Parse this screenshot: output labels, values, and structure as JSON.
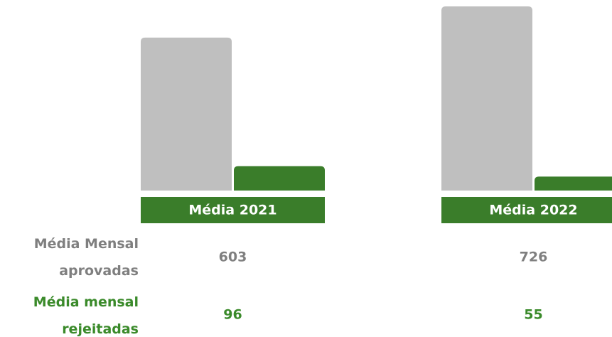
{
  "chart_data": {
    "type": "bar",
    "categories": [
      "Média 2021",
      "Média 2022"
    ],
    "series": [
      {
        "name": "Média Mensal aprovadas",
        "color": "#bfbfbf",
        "values": [
          603,
          726
        ]
      },
      {
        "name": "Média mensal rejeitadas",
        "color": "#3a7d2a",
        "values": [
          96,
          55
        ]
      }
    ]
  }
}
